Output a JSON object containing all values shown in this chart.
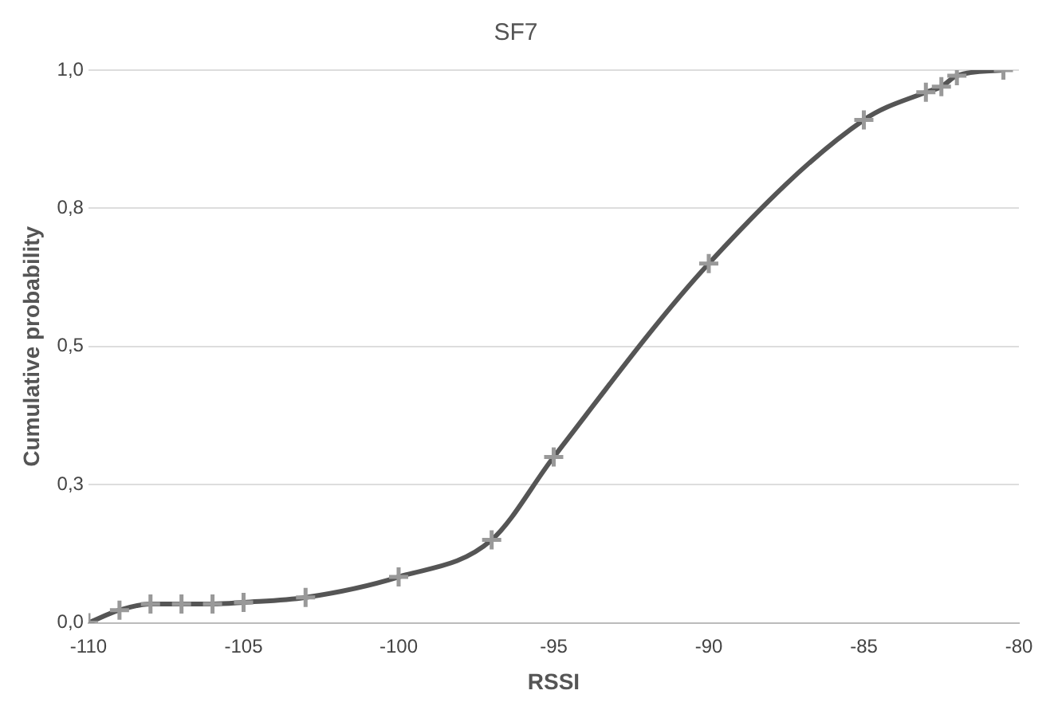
{
  "chart_data": {
    "type": "line",
    "title": "SF7",
    "xlabel": "RSSI",
    "ylabel": "Cumulative probability",
    "x": [
      -110,
      -109,
      -108,
      -107,
      -106,
      -105,
      -103,
      -100,
      -97,
      -95,
      -90,
      -85,
      -83,
      -82.5,
      -82,
      -80.5
    ],
    "series": [
      {
        "color": "#555555",
        "values": [
          0,
          0.023,
          0.034,
          0.034,
          0.034,
          0.037,
          0.046,
          0.083,
          0.15,
          0.3,
          0.65,
          0.91,
          0.96,
          0.97,
          0.99,
          1.0
        ]
      }
    ],
    "xlim": [
      -110,
      -80
    ],
    "xticks": [
      -110,
      -105,
      -100,
      -95,
      -90,
      -85,
      -80
    ],
    "ylim": [
      0,
      1
    ],
    "yticks": [
      {
        "value": 0,
        "label": "0,0"
      },
      {
        "value": 0.25,
        "label": "0,3"
      },
      {
        "value": 0.5,
        "label": "0,5"
      },
      {
        "value": 0.75,
        "label": "0,8"
      },
      {
        "value": 1,
        "label": "1,0"
      }
    ],
    "grid": "y",
    "legend": false,
    "marker": "cross",
    "line_style": "solid"
  }
}
